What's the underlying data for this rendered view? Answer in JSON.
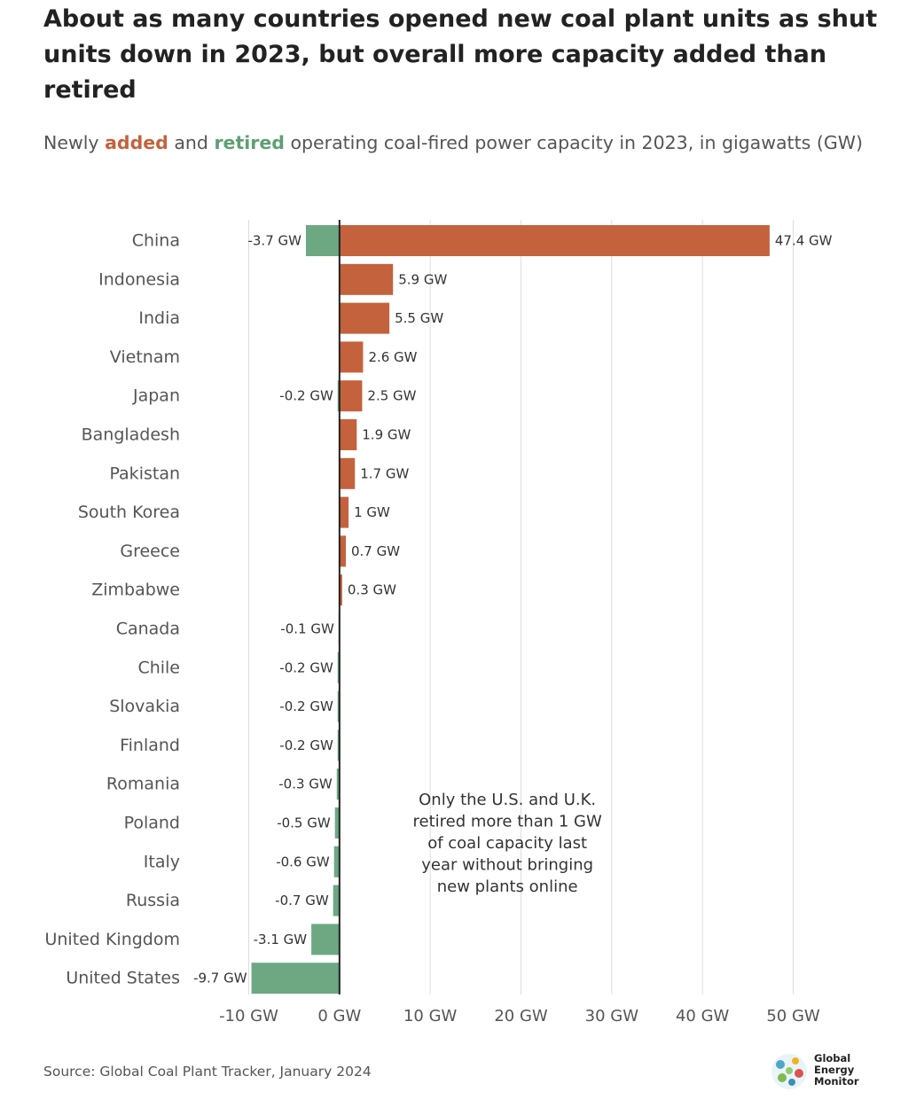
{
  "header": {
    "title": "About as many countries opened new coal plant units as shut units down in 2023, but overall more capacity added than retired",
    "subtitle_pre": "Newly ",
    "subtitle_added": "added",
    "subtitle_mid": " and ",
    "subtitle_retired": "retired",
    "subtitle_post": " operating coal-fired power capacity in 2023, in gigawatts (GW)"
  },
  "colors": {
    "added": "#c4623e",
    "retired": "#6da883",
    "zero_line": "#222222",
    "grid": "#dddddd"
  },
  "chart_data": {
    "type": "bar",
    "orientation": "horizontal",
    "categories": [
      "China",
      "Indonesia",
      "India",
      "Vietnam",
      "Japan",
      "Bangladesh",
      "Pakistan",
      "South Korea",
      "Greece",
      "Zimbabwe",
      "Canada",
      "Chile",
      "Slovakia",
      "Finland",
      "Romania",
      "Poland",
      "Italy",
      "Russia",
      "United Kingdom",
      "United States"
    ],
    "series": [
      {
        "name": "added",
        "color": "#c4623e",
        "values": [
          47.4,
          5.9,
          5.5,
          2.6,
          2.5,
          1.9,
          1.7,
          1,
          0.7,
          0.3,
          null,
          null,
          null,
          null,
          null,
          null,
          null,
          null,
          null,
          null
        ]
      },
      {
        "name": "retired",
        "color": "#6da883",
        "values": [
          -3.7,
          null,
          null,
          null,
          -0.2,
          null,
          null,
          null,
          null,
          null,
          -0.1,
          -0.2,
          -0.2,
          -0.2,
          -0.3,
          -0.5,
          -0.6,
          -0.7,
          -3.1,
          -9.7
        ]
      }
    ],
    "value_suffix": " GW",
    "xlim": [
      -10,
      50
    ],
    "xticks": [
      -10,
      0,
      10,
      20,
      30,
      40,
      50
    ],
    "xtick_labels": [
      "-10 GW",
      "0 GW",
      "10 GW",
      "20 GW",
      "30 GW",
      "40 GW",
      "50 GW"
    ],
    "grid": "vertical",
    "annotation": [
      "Only the U.S. and U.K.",
      "retired more than 1 GW",
      "of coal capacity last",
      "year without bringing",
      "new plants online"
    ]
  },
  "footer": {
    "source": "Source: Global Coal Plant Tracker, January 2024",
    "logo_lines": [
      "Global",
      "Energy",
      "Monitor"
    ]
  }
}
